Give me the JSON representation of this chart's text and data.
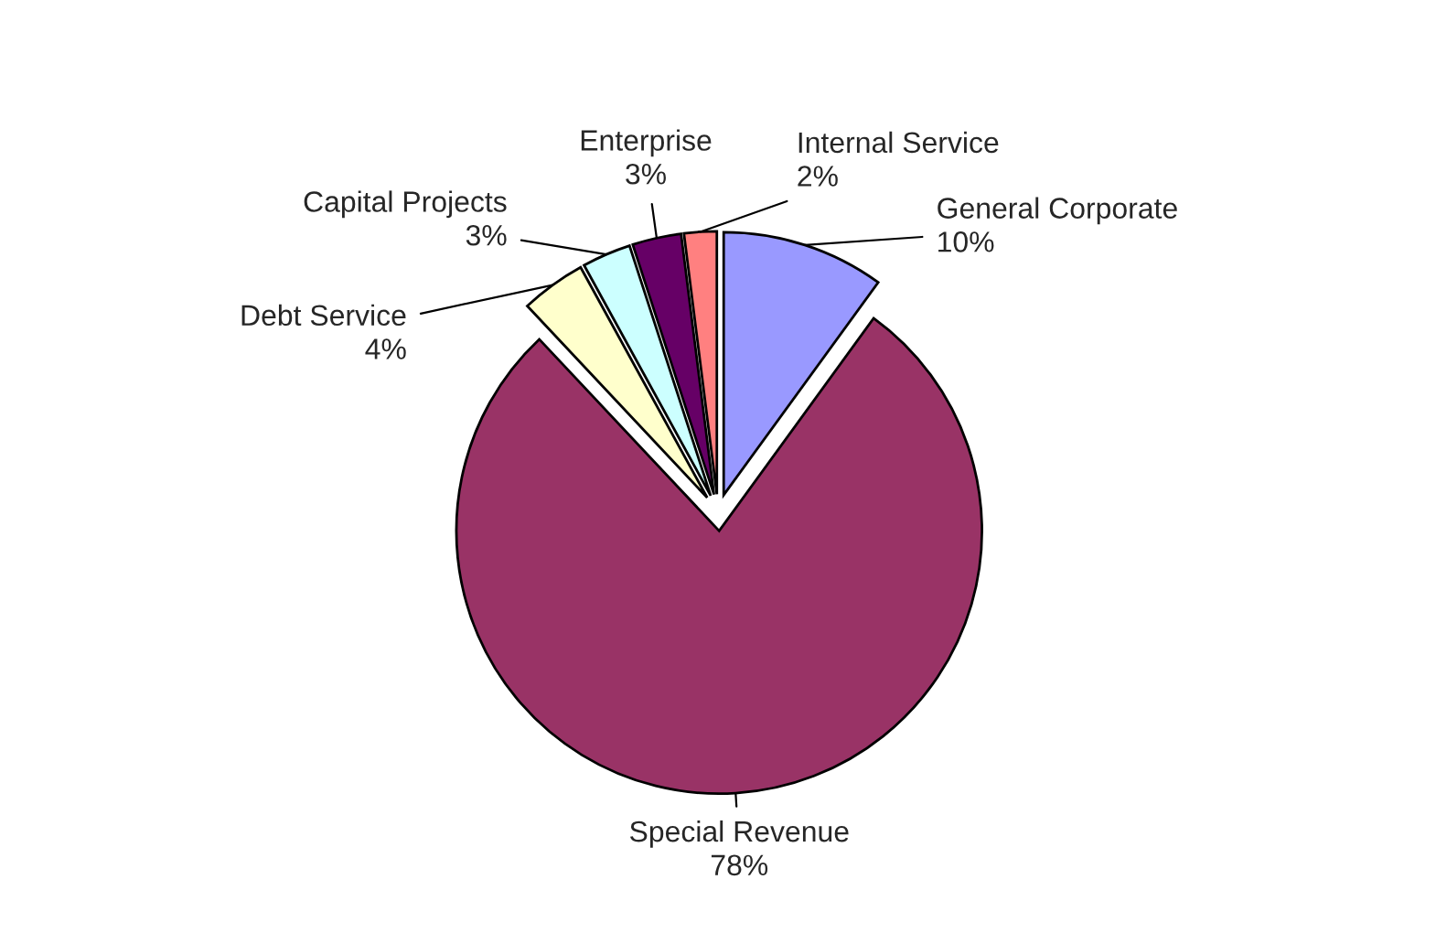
{
  "chart_data": {
    "type": "pie",
    "categories": [
      "General Corporate",
      "Special Revenue",
      "Debt Service",
      "Capital Projects",
      "Enterprise",
      "Internal Service"
    ],
    "values": [
      10,
      78,
      4,
      3,
      3,
      2
    ],
    "colors": [
      "#9999ff",
      "#993366",
      "#ffffcc",
      "#ccffff",
      "#660066",
      "#ff8080"
    ],
    "value_labels": [
      "10%",
      "78%",
      "4%",
      "3%",
      "3%",
      "2%"
    ],
    "legend": false
  }
}
